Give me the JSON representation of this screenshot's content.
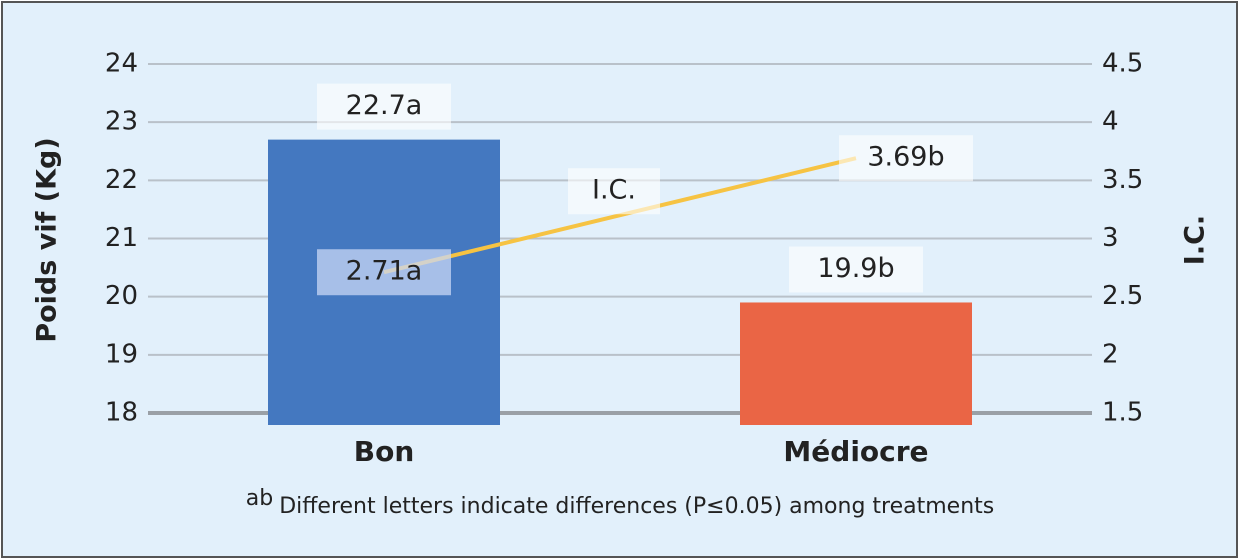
{
  "chart_data": {
    "type": "bar_line",
    "categories": [
      "Bon",
      "Médiocre"
    ],
    "series": [
      {
        "type": "bar",
        "colors": [
          "#4478c0",
          "#ea6545"
        ],
        "values": [
          22.7,
          19.9
        ],
        "value_labels": [
          "22.7a",
          "19.9b"
        ]
      },
      {
        "type": "line",
        "name": "I.C.",
        "color": "#f6c343",
        "axis": "y2",
        "values": [
          2.71,
          3.69
        ],
        "value_labels": [
          "2.71a",
          "3.69b"
        ]
      }
    ],
    "y_label": "Poids vif (Kg)",
    "y2_label": "I.C.",
    "ylim": [
      18,
      24
    ],
    "yticks": [
      18,
      19,
      20,
      21,
      22,
      23,
      24
    ],
    "y2lim": [
      1.5,
      4.5
    ],
    "y2ticks": [
      1.5,
      2,
      2.5,
      3,
      3.5,
      4,
      4.5
    ],
    "grid": true,
    "footnote": {
      "superscript": "ab",
      "text": "Different letters indicate differences (P≤0.05) among treatments"
    }
  }
}
